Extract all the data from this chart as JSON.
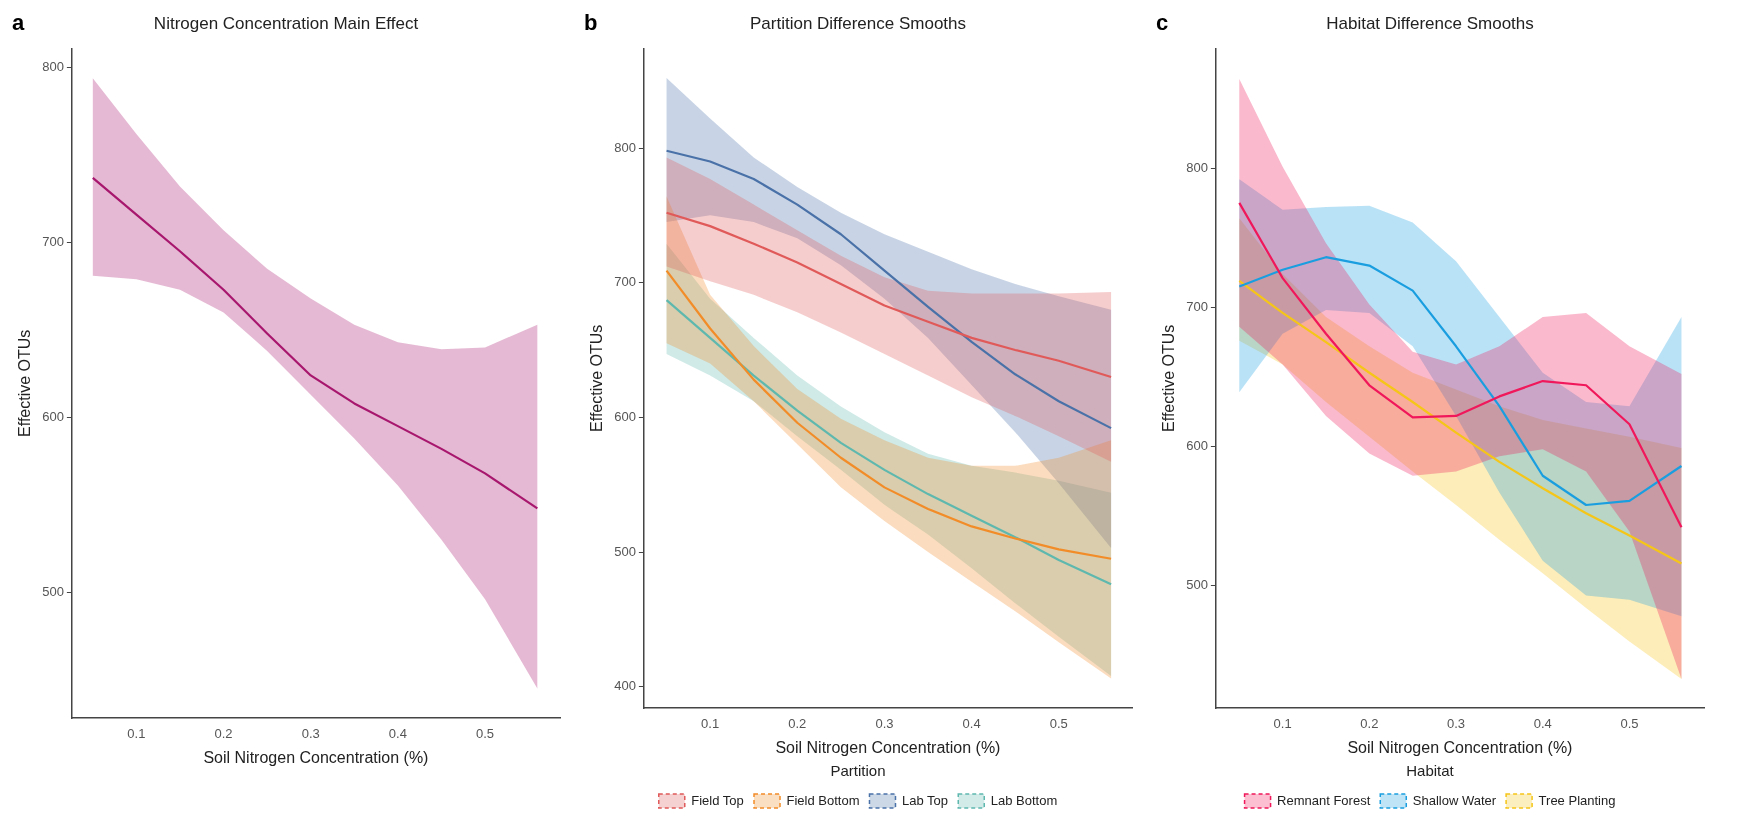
{
  "chart_data": [
    {
      "type": "line",
      "title": "Nitrogen Concentration Main Effect",
      "xlabel": "Soil Nitrogen Concentration (%)",
      "ylabel": "Effective OTUs",
      "annotations": [
        "a"
      ],
      "x": [
        0.05,
        0.1,
        0.15,
        0.2,
        0.25,
        0.3,
        0.35,
        0.4,
        0.45,
        0.5,
        0.56
      ],
      "xlim": [
        0.026,
        0.586
      ],
      "xticks": [
        0.1,
        0.2,
        0.3,
        0.4,
        0.5
      ],
      "ylim": [
        428,
        811
      ],
      "yticks": [
        500,
        600,
        700,
        800
      ],
      "grid": false,
      "legend": false,
      "marker": "none",
      "line_style": "solid",
      "series": [
        {
          "color": "#a8176e",
          "values": [
            737,
            716,
            695,
            673,
            648,
            624,
            608,
            595,
            582,
            568,
            548
          ],
          "upper": [
            794,
            762,
            732,
            707,
            685,
            668,
            653,
            643,
            639,
            640,
            653
          ],
          "lower": [
            681,
            679,
            673,
            660,
            638,
            613,
            588,
            561,
            530,
            496,
            445
          ]
        }
      ]
    },
    {
      "type": "line",
      "title": "Partition Difference Smooths",
      "xlabel": "Soil Nitrogen Concentration (%)",
      "ylabel": "Effective OTUs",
      "legend_title": "Partition",
      "annotations": [
        "b"
      ],
      "x": [
        0.05,
        0.1,
        0.15,
        0.2,
        0.25,
        0.3,
        0.35,
        0.4,
        0.45,
        0.5,
        0.56
      ],
      "xlim": [
        0.024,
        0.584
      ],
      "xticks": [
        0.1,
        0.2,
        0.3,
        0.4,
        0.5
      ],
      "ylim": [
        384,
        874
      ],
      "yticks": [
        400,
        500,
        600,
        700,
        800
      ],
      "grid": false,
      "legend": "bottom",
      "marker": "none",
      "line_style": "solid",
      "series": [
        {
          "name": "Field Top",
          "color": "#e05a5a",
          "values": [
            752,
            742,
            729,
            715,
            699,
            683,
            671,
            659,
            650,
            642,
            630
          ],
          "upper": [
            793,
            777,
            758,
            739,
            720,
            704,
            694,
            692,
            692,
            692,
            693
          ],
          "lower": [
            712,
            701,
            691,
            678,
            663,
            647,
            631,
            615,
            601,
            586,
            567
          ]
        },
        {
          "name": "Field Bottom",
          "color": "#f28c28",
          "values": [
            709,
            666,
            628,
            596,
            570,
            548,
            532,
            519,
            510,
            502,
            495
          ],
          "upper": [
            764,
            691,
            653,
            621,
            599,
            583,
            570,
            564,
            564,
            570,
            583
          ],
          "lower": [
            655,
            640,
            612,
            580,
            548,
            523,
            500,
            478,
            456,
            433,
            406
          ]
        },
        {
          "name": "Lab Top",
          "color": "#4a72a8",
          "values": [
            798,
            790,
            777,
            758,
            736,
            709,
            682,
            656,
            632,
            612,
            592
          ],
          "upper": [
            852,
            822,
            793,
            771,
            752,
            736,
            723,
            710,
            699,
            690,
            680
          ],
          "lower": [
            745,
            750,
            745,
            733,
            713,
            688,
            659,
            624,
            589,
            551,
            503
          ]
        },
        {
          "name": "Lab Bottom",
          "color": "#5fb8ae",
          "values": [
            687,
            659,
            631,
            605,
            581,
            561,
            543,
            527,
            511,
            494,
            476
          ],
          "upper": [
            729,
            688,
            659,
            631,
            608,
            589,
            573,
            564,
            559,
            553,
            544
          ],
          "lower": [
            647,
            631,
            612,
            586,
            561,
            535,
            513,
            488,
            462,
            437,
            408
          ]
        }
      ]
    },
    {
      "type": "line",
      "title": "Habitat Difference Smooths",
      "xlabel": "Soil Nitrogen Concentration (%)",
      "ylabel": "Effective OTUs",
      "legend_title": "Habitat",
      "annotations": [
        "c"
      ],
      "x": [
        0.05,
        0.1,
        0.15,
        0.2,
        0.25,
        0.3,
        0.35,
        0.4,
        0.45,
        0.5,
        0.56
      ],
      "xlim": [
        0.023,
        0.586
      ],
      "xticks": [
        0.1,
        0.2,
        0.3,
        0.4,
        0.5
      ],
      "ylim": [
        412,
        886
      ],
      "yticks": [
        500,
        600,
        700,
        800
      ],
      "grid": false,
      "legend": "bottom",
      "marker": "none",
      "line_style": "solid",
      "series": [
        {
          "name": "Remnant Forest",
          "color": "#f0185a",
          "values": [
            775,
            721,
            681,
            644,
            621,
            622,
            636,
            647,
            644,
            616,
            542
          ],
          "upper": [
            864,
            801,
            746,
            702,
            668,
            659,
            672,
            693,
            696,
            672,
            652
          ],
          "lower": [
            686,
            659,
            622,
            595,
            579,
            582,
            593,
            598,
            582,
            539,
            433
          ]
        },
        {
          "name": "Shallow Water",
          "color": "#1a9ee0",
          "values": [
            715,
            727,
            736,
            730,
            712,
            672,
            629,
            579,
            558,
            561,
            586
          ],
          "upper": [
            792,
            770,
            772,
            773,
            761,
            733,
            693,
            653,
            632,
            629,
            693
          ],
          "lower": [
            639,
            681,
            698,
            696,
            672,
            622,
            567,
            518,
            493,
            490,
            478
          ]
        },
        {
          "name": "Tree Planting",
          "color": "#f5c518",
          "values": [
            719,
            696,
            675,
            653,
            632,
            610,
            589,
            570,
            552,
            536,
            516
          ],
          "upper": [
            764,
            724,
            693,
            672,
            653,
            641,
            629,
            619,
            613,
            607,
            599
          ],
          "lower": [
            676,
            659,
            632,
            607,
            582,
            558,
            533,
            509,
            484,
            460,
            433
          ]
        }
      ]
    }
  ]
}
